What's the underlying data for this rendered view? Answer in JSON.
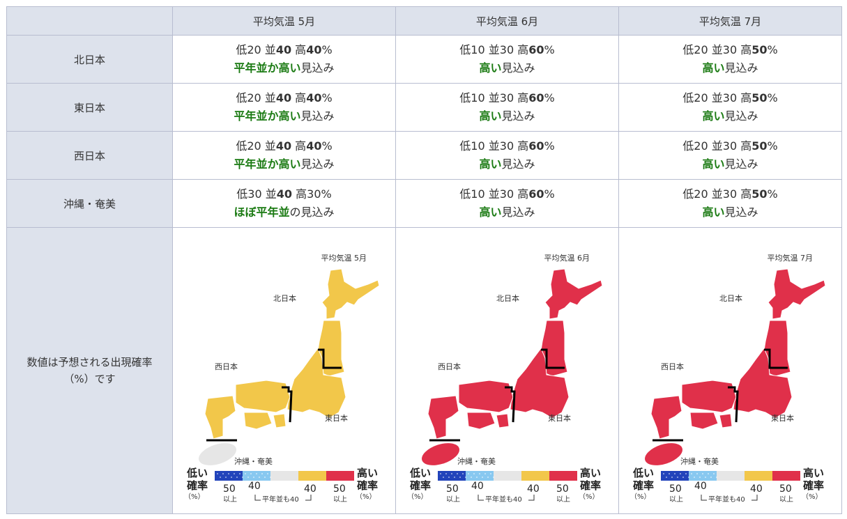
{
  "headers": [
    "平均気温 5月",
    "平均気温 6月",
    "平均気温 7月"
  ],
  "rows": [
    {
      "region": "北日本",
      "cells": [
        {
          "low": "20",
          "mid": "40",
          "high": "40",
          "bold_low": false,
          "bold_mid": true,
          "bold_high": true,
          "verdict": "平年並か高い",
          "suffix": "見込み"
        },
        {
          "low": "10",
          "mid": "30",
          "high": "60",
          "bold_low": false,
          "bold_mid": false,
          "bold_high": true,
          "verdict": "高い",
          "suffix": "見込み"
        },
        {
          "low": "20",
          "mid": "30",
          "high": "50",
          "bold_low": false,
          "bold_mid": false,
          "bold_high": true,
          "verdict": "高い",
          "suffix": "見込み"
        }
      ]
    },
    {
      "region": "東日本",
      "cells": [
        {
          "low": "20",
          "mid": "40",
          "high": "40",
          "bold_low": false,
          "bold_mid": true,
          "bold_high": true,
          "verdict": "平年並か高い",
          "suffix": "見込み"
        },
        {
          "low": "10",
          "mid": "30",
          "high": "60",
          "bold_low": false,
          "bold_mid": false,
          "bold_high": true,
          "verdict": "高い",
          "suffix": "見込み"
        },
        {
          "low": "20",
          "mid": "30",
          "high": "50",
          "bold_low": false,
          "bold_mid": false,
          "bold_high": true,
          "verdict": "高い",
          "suffix": "見込み"
        }
      ]
    },
    {
      "region": "西日本",
      "cells": [
        {
          "low": "20",
          "mid": "40",
          "high": "40",
          "bold_low": false,
          "bold_mid": true,
          "bold_high": true,
          "verdict": "平年並か高い",
          "suffix": "見込み"
        },
        {
          "low": "10",
          "mid": "30",
          "high": "60",
          "bold_low": false,
          "bold_mid": false,
          "bold_high": true,
          "verdict": "高い",
          "suffix": "見込み"
        },
        {
          "low": "20",
          "mid": "30",
          "high": "50",
          "bold_low": false,
          "bold_mid": false,
          "bold_high": true,
          "verdict": "高い",
          "suffix": "見込み"
        }
      ]
    },
    {
      "region": "沖縄・奄美",
      "cells": [
        {
          "low": "30",
          "mid": "40",
          "high": "30",
          "bold_low": false,
          "bold_mid": true,
          "bold_high": false,
          "verdict": "ほぼ平年並",
          "suffix": "の見込み"
        },
        {
          "low": "10",
          "mid": "30",
          "high": "60",
          "bold_low": false,
          "bold_mid": false,
          "bold_high": true,
          "verdict": "高い",
          "suffix": "見込み"
        },
        {
          "low": "20",
          "mid": "30",
          "high": "50",
          "bold_low": false,
          "bold_mid": false,
          "bold_high": true,
          "verdict": "高い",
          "suffix": "見込み"
        }
      ]
    }
  ],
  "labels": {
    "low": "低",
    "mid": "並",
    "high": "高",
    "pct": "%"
  },
  "note": "数値は予想される出現確率（%）です",
  "maps": [
    {
      "title": "平均気温 5月",
      "north": "高(やや)",
      "east": "高(やや)",
      "west": "高(やや)",
      "okinawa": "並",
      "colors": {
        "north": "#f2c74a",
        "east": "#f2c74a",
        "west": "#f2c74a",
        "okinawa": "#e6e6e6"
      }
    },
    {
      "title": "平均気温 6月",
      "north": "高",
      "east": "高",
      "west": "高",
      "okinawa": "高",
      "colors": {
        "north": "#e0304a",
        "east": "#e0304a",
        "west": "#e0304a",
        "okinawa": "#e0304a"
      }
    },
    {
      "title": "平均気温 7月",
      "north": "高",
      "east": "高",
      "west": "高",
      "okinawa": "高",
      "colors": {
        "north": "#e0304a",
        "east": "#e0304a",
        "west": "#e0304a",
        "okinawa": "#e0304a"
      }
    }
  ],
  "map_labels": {
    "north": "北日本",
    "east": "東日本",
    "west": "西日本",
    "okinawa": "沖縄・奄美"
  },
  "legend": {
    "low_title": "低い",
    "high_title": "高い",
    "rate": "確率",
    "pct": "（%）",
    "n50": "50",
    "n40": "40",
    "above": "以上",
    "normal": "平年並も40",
    "colors": {
      "low50": "#2244bb",
      "low40": "#88c8f0",
      "mid": "#e6e6e6",
      "high40": "#f2c74a",
      "high50": "#e0304a"
    }
  }
}
